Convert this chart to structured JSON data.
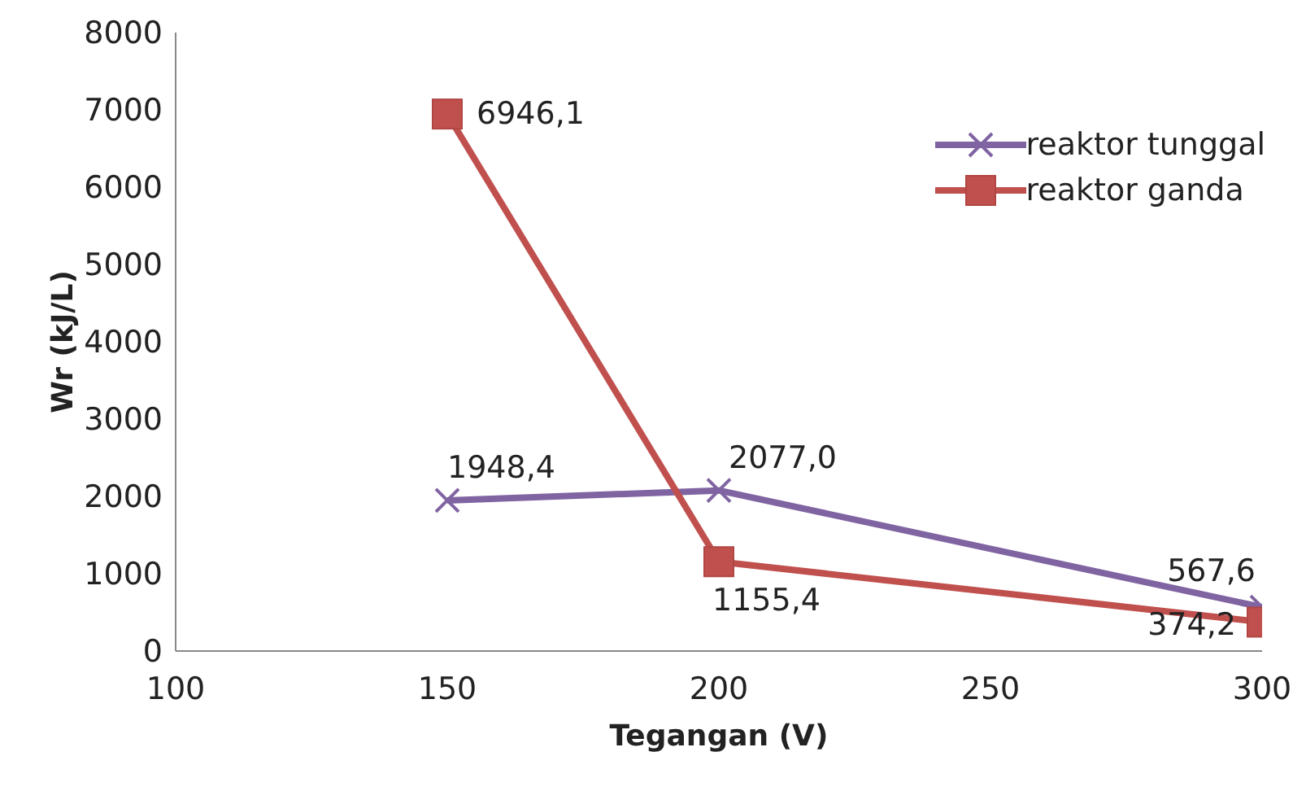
{
  "chart_data": {
    "type": "line",
    "xlabel": "Tegangan (V)",
    "ylabel": "Wr (kJ/L)",
    "x": [
      150,
      200,
      300
    ],
    "xlim": [
      100,
      300
    ],
    "xticks": [
      100,
      150,
      200,
      250,
      300
    ],
    "ylim": [
      0,
      8000
    ],
    "yticks": [
      0,
      1000,
      2000,
      3000,
      4000,
      5000,
      6000,
      7000,
      8000
    ],
    "grid": false,
    "legend": "top right",
    "series": [
      {
        "name": "reaktor tunggal",
        "color": "#8064a2",
        "marker": "cross",
        "values": [
          1948.4,
          2077.0,
          567.6
        ],
        "value_labels": [
          "1948,4",
          "2077,0",
          "567,6"
        ]
      },
      {
        "name": "reaktor ganda",
        "color": "#c0504d",
        "marker": "square",
        "values": [
          6946.1,
          1155.4,
          374.2
        ],
        "value_labels": [
          "6946,1",
          "1155,4",
          "374,2"
        ]
      }
    ]
  }
}
